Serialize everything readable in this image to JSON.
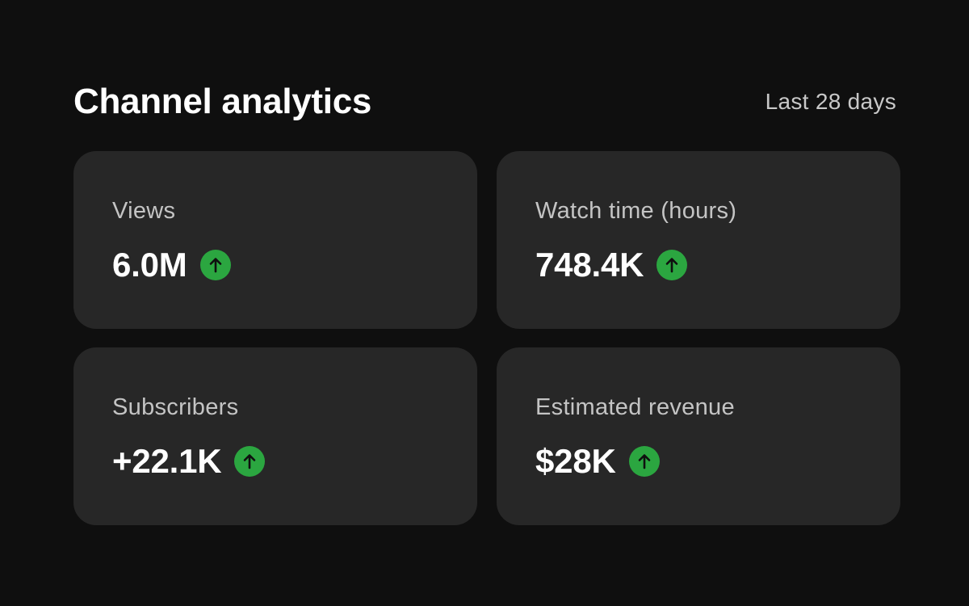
{
  "header": {
    "title": "Channel analytics",
    "period": "Last 28 days"
  },
  "cards": [
    {
      "label": "Views",
      "value": "6.0M",
      "trend": "up"
    },
    {
      "label": "Watch time (hours)",
      "value": "748.4K",
      "trend": "up"
    },
    {
      "label": "Subscribers",
      "value": "+22.1K",
      "trend": "up"
    },
    {
      "label": "Estimated revenue",
      "value": "$28K",
      "trend": "up"
    }
  ],
  "icons": {
    "trend_up": "arrow-up-circle-icon"
  },
  "colors": {
    "background": "#0f0f0f",
    "card": "#272727",
    "trend_up": "#2ba640"
  }
}
